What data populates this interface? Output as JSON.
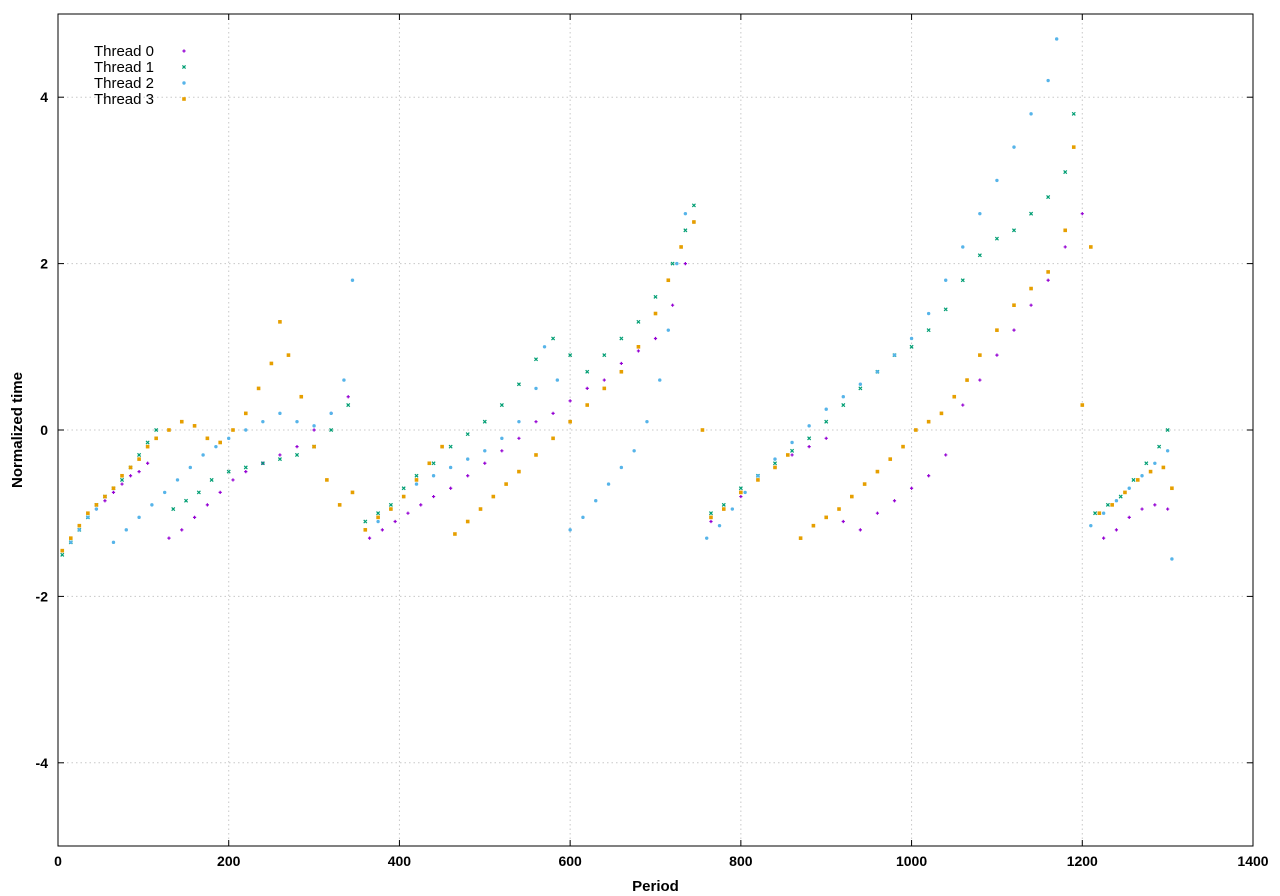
{
  "chart_data": {
    "type": "scatter",
    "title": "",
    "xlabel": "Period",
    "ylabel": "Normalized time",
    "xlim": [
      0,
      1400
    ],
    "ylim": [
      -5,
      5
    ],
    "xticks": [
      0,
      200,
      400,
      600,
      800,
      1000,
      1200,
      1400
    ],
    "yticks": [
      -4,
      -2,
      0,
      2,
      4
    ],
    "grid": true,
    "legend_position": "top-left",
    "series": [
      {
        "name": "Thread 0",
        "color": "#9400d3",
        "marker": "plus",
        "points": [
          [
            5,
            -1.45
          ],
          [
            15,
            -1.3
          ],
          [
            25,
            -1.15
          ],
          [
            35,
            -1.0
          ],
          [
            45,
            -0.95
          ],
          [
            55,
            -0.85
          ],
          [
            65,
            -0.75
          ],
          [
            75,
            -0.65
          ],
          [
            85,
            -0.55
          ],
          [
            95,
            -0.5
          ],
          [
            105,
            -0.4
          ],
          [
            130,
            -1.3
          ],
          [
            145,
            -1.2
          ],
          [
            160,
            -1.05
          ],
          [
            175,
            -0.9
          ],
          [
            190,
            -0.75
          ],
          [
            205,
            -0.6
          ],
          [
            220,
            -0.5
          ],
          [
            240,
            -0.4
          ],
          [
            260,
            -0.3
          ],
          [
            280,
            -0.2
          ],
          [
            300,
            0.0
          ],
          [
            320,
            0.2
          ],
          [
            340,
            0.4
          ],
          [
            365,
            -1.3
          ],
          [
            380,
            -1.2
          ],
          [
            395,
            -1.1
          ],
          [
            410,
            -1.0
          ],
          [
            425,
            -0.9
          ],
          [
            440,
            -0.8
          ],
          [
            460,
            -0.7
          ],
          [
            480,
            -0.55
          ],
          [
            500,
            -0.4
          ],
          [
            520,
            -0.25
          ],
          [
            540,
            -0.1
          ],
          [
            560,
            0.1
          ],
          [
            580,
            0.2
          ],
          [
            600,
            0.35
          ],
          [
            620,
            0.5
          ],
          [
            640,
            0.6
          ],
          [
            660,
            0.8
          ],
          [
            680,
            0.95
          ],
          [
            700,
            1.1
          ],
          [
            720,
            1.5
          ],
          [
            735,
            2.0
          ],
          [
            745,
            2.5
          ],
          [
            765,
            -1.1
          ],
          [
            780,
            -0.95
          ],
          [
            800,
            -0.8
          ],
          [
            820,
            -0.6
          ],
          [
            840,
            -0.45
          ],
          [
            860,
            -0.3
          ],
          [
            880,
            -0.2
          ],
          [
            900,
            -0.1
          ],
          [
            920,
            -1.1
          ],
          [
            940,
            -1.2
          ],
          [
            960,
            -1.0
          ],
          [
            980,
            -0.85
          ],
          [
            1000,
            -0.7
          ],
          [
            1020,
            -0.55
          ],
          [
            1040,
            -0.3
          ],
          [
            1060,
            0.3
          ],
          [
            1080,
            0.6
          ],
          [
            1100,
            0.9
          ],
          [
            1120,
            1.2
          ],
          [
            1140,
            1.5
          ],
          [
            1160,
            1.8
          ],
          [
            1180,
            2.2
          ],
          [
            1200,
            2.6
          ],
          [
            1225,
            -1.3
          ],
          [
            1240,
            -1.2
          ],
          [
            1255,
            -1.05
          ],
          [
            1270,
            -0.95
          ],
          [
            1285,
            -0.9
          ],
          [
            1300,
            -0.95
          ]
        ]
      },
      {
        "name": "Thread 1",
        "color": "#009e73",
        "marker": "cross",
        "points": [
          [
            5,
            -1.5
          ],
          [
            15,
            -1.35
          ],
          [
            25,
            -1.2
          ],
          [
            35,
            -1.05
          ],
          [
            45,
            -0.9
          ],
          [
            55,
            -0.8
          ],
          [
            65,
            -0.7
          ],
          [
            75,
            -0.6
          ],
          [
            85,
            -0.45
          ],
          [
            95,
            -0.3
          ],
          [
            105,
            -0.15
          ],
          [
            115,
            0.0
          ],
          [
            135,
            -0.95
          ],
          [
            150,
            -0.85
          ],
          [
            165,
            -0.75
          ],
          [
            180,
            -0.6
          ],
          [
            200,
            -0.5
          ],
          [
            220,
            -0.45
          ],
          [
            240,
            -0.4
          ],
          [
            260,
            -0.35
          ],
          [
            280,
            -0.3
          ],
          [
            300,
            -0.2
          ],
          [
            320,
            0.0
          ],
          [
            340,
            0.3
          ],
          [
            360,
            -1.1
          ],
          [
            375,
            -1.0
          ],
          [
            390,
            -0.9
          ],
          [
            405,
            -0.7
          ],
          [
            420,
            -0.55
          ],
          [
            440,
            -0.4
          ],
          [
            460,
            -0.2
          ],
          [
            480,
            -0.05
          ],
          [
            500,
            0.1
          ],
          [
            520,
            0.3
          ],
          [
            540,
            0.55
          ],
          [
            560,
            0.85
          ],
          [
            580,
            1.1
          ],
          [
            600,
            0.9
          ],
          [
            620,
            0.7
          ],
          [
            640,
            0.9
          ],
          [
            660,
            1.1
          ],
          [
            680,
            1.3
          ],
          [
            700,
            1.6
          ],
          [
            720,
            2.0
          ],
          [
            735,
            2.4
          ],
          [
            745,
            2.7
          ],
          [
            765,
            -1.0
          ],
          [
            780,
            -0.9
          ],
          [
            800,
            -0.7
          ],
          [
            820,
            -0.55
          ],
          [
            840,
            -0.4
          ],
          [
            860,
            -0.25
          ],
          [
            880,
            -0.1
          ],
          [
            900,
            0.1
          ],
          [
            920,
            0.3
          ],
          [
            940,
            0.5
          ],
          [
            960,
            0.7
          ],
          [
            980,
            0.9
          ],
          [
            1000,
            1.0
          ],
          [
            1020,
            1.2
          ],
          [
            1040,
            1.45
          ],
          [
            1060,
            1.8
          ],
          [
            1080,
            2.1
          ],
          [
            1100,
            2.3
          ],
          [
            1120,
            2.4
          ],
          [
            1140,
            2.6
          ],
          [
            1160,
            2.8
          ],
          [
            1180,
            3.1
          ],
          [
            1190,
            3.8
          ],
          [
            1215,
            -1.0
          ],
          [
            1230,
            -0.9
          ],
          [
            1245,
            -0.8
          ],
          [
            1260,
            -0.6
          ],
          [
            1275,
            -0.4
          ],
          [
            1290,
            -0.2
          ],
          [
            1300,
            0.0
          ]
        ]
      },
      {
        "name": "Thread 2",
        "color": "#56b4e9",
        "marker": "star",
        "points": [
          [
            5,
            -1.45
          ],
          [
            15,
            -1.35
          ],
          [
            25,
            -1.2
          ],
          [
            35,
            -1.05
          ],
          [
            45,
            -0.95
          ],
          [
            65,
            -1.35
          ],
          [
            80,
            -1.2
          ],
          [
            95,
            -1.05
          ],
          [
            110,
            -0.9
          ],
          [
            125,
            -0.75
          ],
          [
            140,
            -0.6
          ],
          [
            155,
            -0.45
          ],
          [
            170,
            -0.3
          ],
          [
            185,
            -0.2
          ],
          [
            200,
            -0.1
          ],
          [
            220,
            0.0
          ],
          [
            240,
            0.1
          ],
          [
            260,
            0.2
          ],
          [
            280,
            0.1
          ],
          [
            300,
            0.05
          ],
          [
            320,
            0.2
          ],
          [
            335,
            0.6
          ],
          [
            345,
            1.8
          ],
          [
            360,
            -1.2
          ],
          [
            375,
            -1.1
          ],
          [
            390,
            -0.95
          ],
          [
            405,
            -0.8
          ],
          [
            420,
            -0.65
          ],
          [
            440,
            -0.55
          ],
          [
            460,
            -0.45
          ],
          [
            480,
            -0.35
          ],
          [
            500,
            -0.25
          ],
          [
            520,
            -0.1
          ],
          [
            540,
            0.1
          ],
          [
            560,
            0.5
          ],
          [
            570,
            1.0
          ],
          [
            585,
            0.6
          ],
          [
            600,
            -1.2
          ],
          [
            615,
            -1.05
          ],
          [
            630,
            -0.85
          ],
          [
            645,
            -0.65
          ],
          [
            660,
            -0.45
          ],
          [
            675,
            -0.25
          ],
          [
            690,
            0.1
          ],
          [
            705,
            0.6
          ],
          [
            715,
            1.2
          ],
          [
            725,
            2.0
          ],
          [
            735,
            2.6
          ],
          [
            760,
            -1.3
          ],
          [
            775,
            -1.15
          ],
          [
            790,
            -0.95
          ],
          [
            805,
            -0.75
          ],
          [
            820,
            -0.55
          ],
          [
            840,
            -0.35
          ],
          [
            860,
            -0.15
          ],
          [
            880,
            0.05
          ],
          [
            900,
            0.25
          ],
          [
            920,
            0.4
          ],
          [
            940,
            0.55
          ],
          [
            960,
            0.7
          ],
          [
            980,
            0.9
          ],
          [
            1000,
            1.1
          ],
          [
            1020,
            1.4
          ],
          [
            1040,
            1.8
          ],
          [
            1060,
            2.2
          ],
          [
            1080,
            2.6
          ],
          [
            1100,
            3.0
          ],
          [
            1120,
            3.4
          ],
          [
            1140,
            3.8
          ],
          [
            1160,
            4.2
          ],
          [
            1170,
            4.7
          ],
          [
            1210,
            -1.15
          ],
          [
            1225,
            -1.0
          ],
          [
            1240,
            -0.85
          ],
          [
            1255,
            -0.7
          ],
          [
            1270,
            -0.55
          ],
          [
            1285,
            -0.4
          ],
          [
            1300,
            -0.25
          ],
          [
            1305,
            -1.55
          ]
        ]
      },
      {
        "name": "Thread 3",
        "color": "#e69f00",
        "marker": "box",
        "points": [
          [
            5,
            -1.45
          ],
          [
            15,
            -1.3
          ],
          [
            25,
            -1.15
          ],
          [
            35,
            -1.0
          ],
          [
            45,
            -0.9
          ],
          [
            55,
            -0.8
          ],
          [
            65,
            -0.7
          ],
          [
            75,
            -0.55
          ],
          [
            85,
            -0.45
          ],
          [
            95,
            -0.35
          ],
          [
            105,
            -0.2
          ],
          [
            115,
            -0.1
          ],
          [
            130,
            0.0
          ],
          [
            145,
            0.1
          ],
          [
            160,
            0.05
          ],
          [
            175,
            -0.1
          ],
          [
            190,
            -0.15
          ],
          [
            205,
            0.0
          ],
          [
            220,
            0.2
          ],
          [
            235,
            0.5
          ],
          [
            250,
            0.8
          ],
          [
            260,
            1.3
          ],
          [
            270,
            0.9
          ],
          [
            285,
            0.4
          ],
          [
            300,
            -0.2
          ],
          [
            315,
            -0.6
          ],
          [
            330,
            -0.9
          ],
          [
            345,
            -0.75
          ],
          [
            360,
            -1.2
          ],
          [
            375,
            -1.05
          ],
          [
            390,
            -0.95
          ],
          [
            405,
            -0.8
          ],
          [
            420,
            -0.6
          ],
          [
            435,
            -0.4
          ],
          [
            450,
            -0.2
          ],
          [
            465,
            -1.25
          ],
          [
            480,
            -1.1
          ],
          [
            495,
            -0.95
          ],
          [
            510,
            -0.8
          ],
          [
            525,
            -0.65
          ],
          [
            540,
            -0.5
          ],
          [
            560,
            -0.3
          ],
          [
            580,
            -0.1
          ],
          [
            600,
            0.1
          ],
          [
            620,
            0.3
          ],
          [
            640,
            0.5
          ],
          [
            660,
            0.7
          ],
          [
            680,
            1.0
          ],
          [
            700,
            1.4
          ],
          [
            715,
            1.8
          ],
          [
            730,
            2.2
          ],
          [
            745,
            2.5
          ],
          [
            755,
            0.0
          ],
          [
            765,
            -1.05
          ],
          [
            780,
            -0.95
          ],
          [
            800,
            -0.75
          ],
          [
            820,
            -0.6
          ],
          [
            840,
            -0.45
          ],
          [
            855,
            -0.3
          ],
          [
            870,
            -1.3
          ],
          [
            885,
            -1.15
          ],
          [
            900,
            -1.05
          ],
          [
            915,
            -0.95
          ],
          [
            930,
            -0.8
          ],
          [
            945,
            -0.65
          ],
          [
            960,
            -0.5
          ],
          [
            975,
            -0.35
          ],
          [
            990,
            -0.2
          ],
          [
            1005,
            0.0
          ],
          [
            1020,
            0.1
          ],
          [
            1035,
            0.2
          ],
          [
            1050,
            0.4
          ],
          [
            1065,
            0.6
          ],
          [
            1080,
            0.9
          ],
          [
            1100,
            1.2
          ],
          [
            1120,
            1.5
          ],
          [
            1140,
            1.7
          ],
          [
            1160,
            1.9
          ],
          [
            1180,
            2.4
          ],
          [
            1190,
            3.4
          ],
          [
            1200,
            0.3
          ],
          [
            1210,
            2.2
          ],
          [
            1220,
            -1.0
          ],
          [
            1235,
            -0.9
          ],
          [
            1250,
            -0.75
          ],
          [
            1265,
            -0.6
          ],
          [
            1280,
            -0.5
          ],
          [
            1295,
            -0.45
          ],
          [
            1305,
            -0.7
          ]
        ]
      }
    ]
  }
}
